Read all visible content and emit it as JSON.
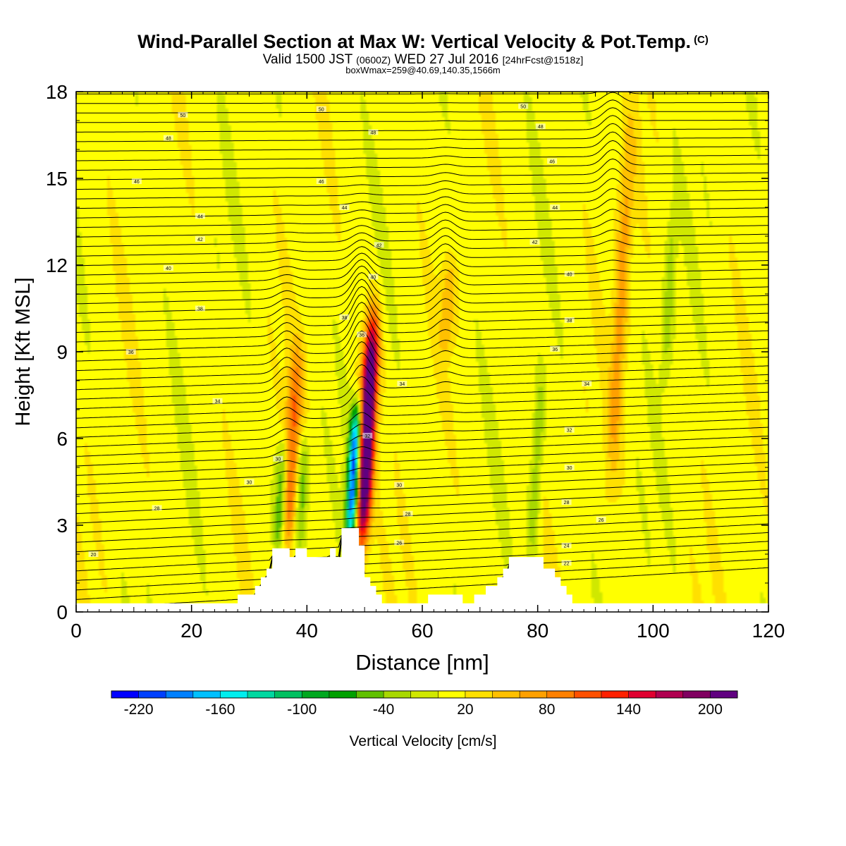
{
  "header": {
    "title_main": "Wind-Parallel Section at Max W: Vertical Velocity & Pot.Temp.",
    "title_sup": "(C)",
    "valid_a": "Valid 1500 JST",
    "valid_b": "(0600Z)",
    "valid_c": "WED 27 Jul 2016",
    "valid_d": "[24hrFcst@1518z]",
    "boxinfo": "boxWmax=259@40.69,140.35,1566m"
  },
  "chart_data": {
    "type": "heatmap",
    "xlabel": "Distance [nm]",
    "ylabel": "Height [Kft MSL]",
    "xlim": [
      0,
      120
    ],
    "ylim": [
      0,
      18
    ],
    "xticks": [
      "0",
      "20",
      "40",
      "60",
      "80",
      "100",
      "120"
    ],
    "yticks": [
      "0",
      "3",
      "6",
      "9",
      "12",
      "15",
      "18"
    ],
    "colorbar": {
      "label": "Vertical Velocity [cm/s]",
      "tick_labels": [
        "-220",
        "-160",
        "-100",
        "-40",
        "20",
        "80",
        "140",
        "200"
      ],
      "min": -240,
      "max": 220,
      "step": 20,
      "colors": [
        "#0000ff",
        "#0040ff",
        "#0080ff",
        "#00c0ff",
        "#00eeee",
        "#00d8a0",
        "#00c060",
        "#00a820",
        "#00a000",
        "#60c000",
        "#a8d800",
        "#d0e800",
        "#ffff00",
        "#ffe000",
        "#ffc000",
        "#ffa000",
        "#ff8000",
        "#ff5000",
        "#ff2000",
        "#e00030",
        "#b00050",
        "#800060",
        "#600080"
      ]
    },
    "features": [
      {
        "x": 49.5,
        "z_bottom": 2.5,
        "z_top": 10.0,
        "w": 259,
        "kind": "updraft"
      },
      {
        "x": 47.5,
        "z_bottom": 2.5,
        "z_top": 7.0,
        "w": -220,
        "kind": "downdraft"
      },
      {
        "x": 36.5,
        "z_bottom": 2.0,
        "z_top": 9.0,
        "w": 90,
        "kind": "updraft"
      },
      {
        "x": 35.0,
        "z_bottom": 2.0,
        "z_top": 6.0,
        "w": -70,
        "kind": "downdraft"
      },
      {
        "x": 38.5,
        "z_bottom": 2.0,
        "z_top": 6.0,
        "w": -60,
        "kind": "downdraft"
      },
      {
        "x": 93.0,
        "z_bottom": 5.0,
        "z_top": 16.5,
        "w": 60,
        "kind": "updraft"
      },
      {
        "x": 102.0,
        "z_bottom": 8.0,
        "z_top": 14.0,
        "w": -40,
        "kind": "downdraft"
      },
      {
        "x": 79.0,
        "z_bottom": 2.0,
        "z_top": 8.0,
        "w": -50,
        "kind": "downdraft"
      },
      {
        "x": 64.0,
        "z_bottom": 9.0,
        "z_top": 12.0,
        "w": 40,
        "kind": "updraft"
      }
    ],
    "terrain": [
      [
        0,
        0
      ],
      [
        28,
        0
      ],
      [
        28,
        0.3
      ],
      [
        31,
        0.3
      ],
      [
        31,
        0.6
      ],
      [
        32,
        0.6
      ],
      [
        32,
        0.9
      ],
      [
        33,
        0.9
      ],
      [
        33,
        1.2
      ],
      [
        34,
        1.2
      ],
      [
        34,
        1.9
      ],
      [
        37,
        1.9
      ],
      [
        37,
        1.6
      ],
      [
        38,
        1.6
      ],
      [
        38,
        1.9
      ],
      [
        40,
        1.9
      ],
      [
        40,
        1.6
      ],
      [
        44,
        1.6
      ],
      [
        44,
        1.9
      ],
      [
        45,
        1.9
      ],
      [
        45,
        1.6
      ],
      [
        46,
        1.6
      ],
      [
        46,
        2.6
      ],
      [
        49,
        2.6
      ],
      [
        49,
        2.0
      ],
      [
        50,
        2.0
      ],
      [
        50,
        0.9
      ],
      [
        51,
        0.9
      ],
      [
        51,
        0.6
      ],
      [
        52,
        0.6
      ],
      [
        52,
        0.3
      ],
      [
        53,
        0.3
      ],
      [
        53,
        0
      ],
      [
        61,
        0
      ],
      [
        61,
        0.3
      ],
      [
        67,
        0.3
      ],
      [
        67,
        0
      ],
      [
        69,
        0
      ],
      [
        69,
        0.3
      ],
      [
        71,
        0.3
      ],
      [
        71,
        0.6
      ],
      [
        73,
        0.6
      ],
      [
        73,
        0.9
      ],
      [
        74,
        0.9
      ],
      [
        74,
        1.2
      ],
      [
        75,
        1.2
      ],
      [
        75,
        1.6
      ],
      [
        81,
        1.6
      ],
      [
        81,
        1.2
      ],
      [
        83,
        1.2
      ],
      [
        83,
        0.9
      ],
      [
        84,
        0.9
      ],
      [
        84,
        0.6
      ],
      [
        85,
        0.6
      ],
      [
        85,
        0.3
      ],
      [
        86,
        0.3
      ],
      [
        86,
        0
      ],
      [
        120,
        0
      ]
    ],
    "isentropes": {
      "label": "Pot.Temp. (C)",
      "labels": [
        {
          "text": "50",
          "x": 18.5,
          "y": 17.2
        },
        {
          "text": "50",
          "x": 42.5,
          "y": 17.4
        },
        {
          "text": "50",
          "x": 77.5,
          "y": 17.5
        },
        {
          "text": "48",
          "x": 16.0,
          "y": 16.4
        },
        {
          "text": "48",
          "x": 51.5,
          "y": 16.6
        },
        {
          "text": "48",
          "x": 80.5,
          "y": 16.8
        },
        {
          "text": "46",
          "x": 10.5,
          "y": 14.9
        },
        {
          "text": "46",
          "x": 42.5,
          "y": 14.9
        },
        {
          "text": "46",
          "x": 82.5,
          "y": 15.6
        },
        {
          "text": "44",
          "x": 21.5,
          "y": 13.7
        },
        {
          "text": "44",
          "x": 46.5,
          "y": 14.0
        },
        {
          "text": "44",
          "x": 83.0,
          "y": 14.0
        },
        {
          "text": "42",
          "x": 21.5,
          "y": 12.9
        },
        {
          "text": "42",
          "x": 52.5,
          "y": 12.7
        },
        {
          "text": "42",
          "x": 79.5,
          "y": 12.8
        },
        {
          "text": "40",
          "x": 16.0,
          "y": 11.9
        },
        {
          "text": "40",
          "x": 51.5,
          "y": 11.6
        },
        {
          "text": "40",
          "x": 85.5,
          "y": 11.7
        },
        {
          "text": "38",
          "x": 21.5,
          "y": 10.5
        },
        {
          "text": "38",
          "x": 46.5,
          "y": 10.2
        },
        {
          "text": "38",
          "x": 85.5,
          "y": 10.1
        },
        {
          "text": "36",
          "x": 9.5,
          "y": 9.0
        },
        {
          "text": "36",
          "x": 49.5,
          "y": 9.6
        },
        {
          "text": "36",
          "x": 83.0,
          "y": 9.1
        },
        {
          "text": "34",
          "x": 24.5,
          "y": 7.3
        },
        {
          "text": "34",
          "x": 56.5,
          "y": 7.9
        },
        {
          "text": "34",
          "x": 88.5,
          "y": 7.9
        },
        {
          "text": "32",
          "x": 50.5,
          "y": 6.1
        },
        {
          "text": "32",
          "x": 85.5,
          "y": 6.3
        },
        {
          "text": "30",
          "x": 35.0,
          "y": 5.3
        },
        {
          "text": "30",
          "x": 30.0,
          "y": 4.5
        },
        {
          "text": "30",
          "x": 56.0,
          "y": 4.4
        },
        {
          "text": "30",
          "x": 85.5,
          "y": 5.0
        },
        {
          "text": "28",
          "x": 14.0,
          "y": 3.6
        },
        {
          "text": "28",
          "x": 57.5,
          "y": 3.4
        },
        {
          "text": "28",
          "x": 85.0,
          "y": 3.8
        },
        {
          "text": "26",
          "x": 56.0,
          "y": 2.4
        },
        {
          "text": "26",
          "x": 91.0,
          "y": 3.2
        },
        {
          "text": "24",
          "x": 85.0,
          "y": 2.3
        },
        {
          "text": "22",
          "x": 85.0,
          "y": 1.7
        },
        {
          "text": "20",
          "x": 3.0,
          "y": 2.0
        }
      ]
    }
  }
}
